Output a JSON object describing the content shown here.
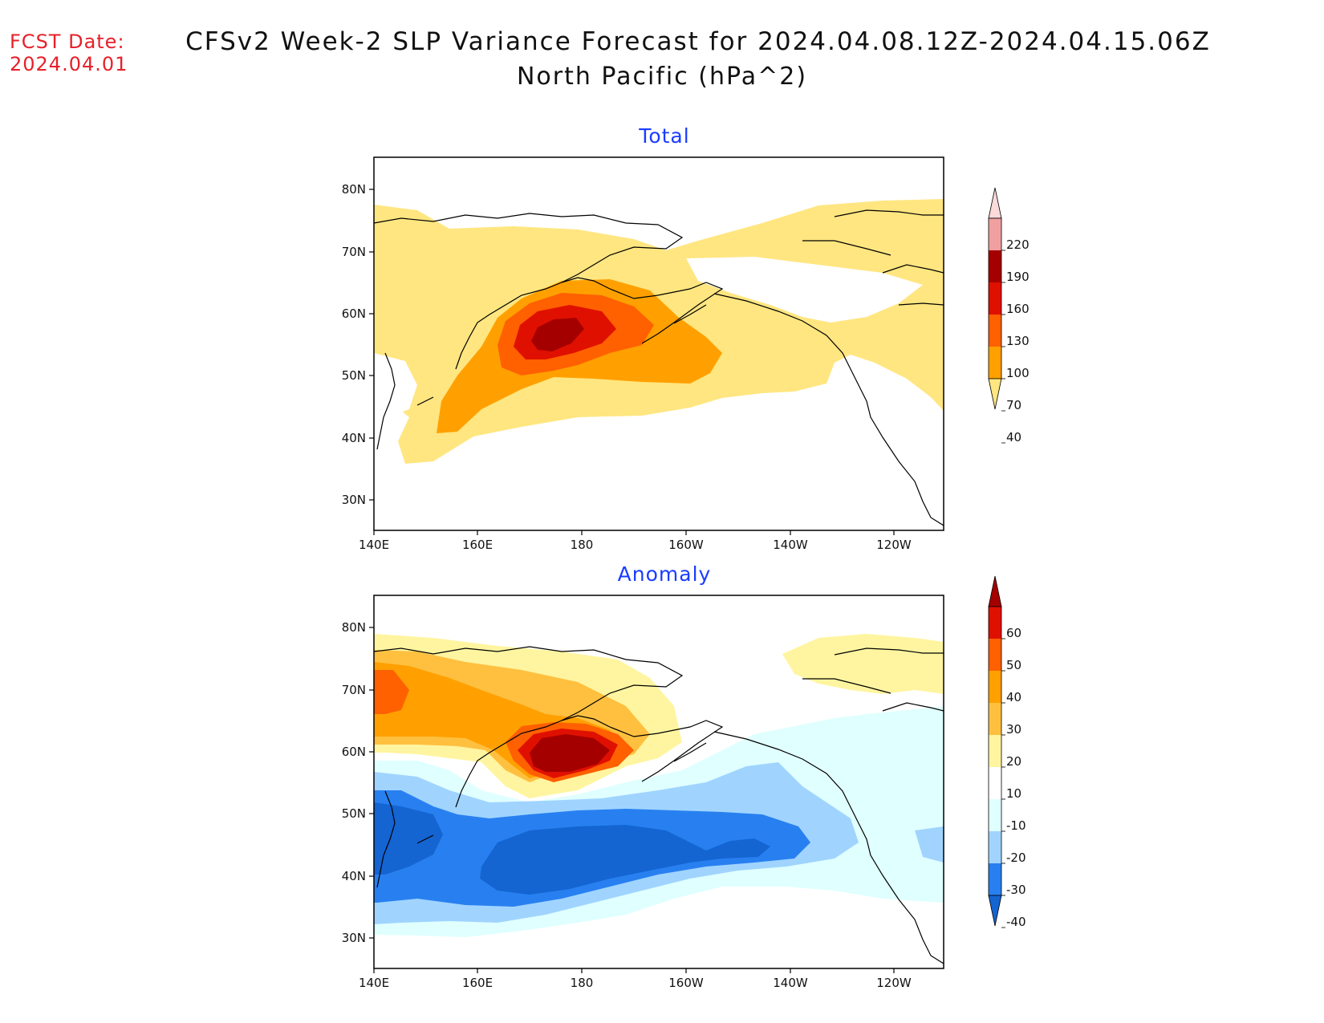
{
  "header": {
    "fcst_label": "FCST Date:",
    "fcst_date": "2024.04.01",
    "title": "CFSv2 Week-2 SLP Variance Forecast for 2024.04.08.12Z-2024.04.15.06Z",
    "subtitle": "North Pacific (hPa^2)"
  },
  "map": {
    "lon_ticks": [
      "140E",
      "160E",
      "180",
      "160W",
      "140W",
      "120W"
    ],
    "lat_ticks": [
      "80N",
      "70N",
      "60N",
      "50N",
      "40N",
      "30N"
    ]
  },
  "panels": [
    {
      "title": "Total",
      "colorbar": {
        "labels": [
          "220",
          "190",
          "160",
          "130",
          "100",
          "70",
          "40"
        ],
        "colors": [
          "#fbdada",
          "#f0a0a0",
          "#a50000",
          "#e01000",
          "#ff6000",
          "#ffa000",
          "#ffe680"
        ]
      }
    },
    {
      "title": "Anomaly",
      "colorbar": {
        "labels": [
          "60",
          "50",
          "40",
          "30",
          "20",
          "10",
          "-10",
          "-20",
          "-30",
          "-40"
        ],
        "colors": [
          "#a50000",
          "#e01000",
          "#ff6000",
          "#ffa000",
          "#ffc040",
          "#fff5a0",
          "#ffffff",
          "#e0ffff",
          "#a0d4ff",
          "#2880f0",
          "#1464d2"
        ]
      }
    }
  ]
}
